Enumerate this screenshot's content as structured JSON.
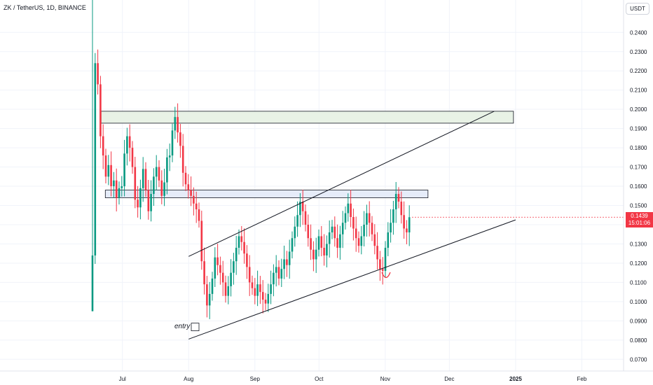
{
  "header": {
    "title": "ZK / TetherUS, 1D, BINANCE"
  },
  "currency_button": {
    "label": "USDT"
  },
  "last_price": {
    "value": "0.1439",
    "countdown": "15:01:06"
  },
  "annotations": {
    "entry_label": "entry"
  },
  "colors": {
    "up": "#089981",
    "down": "#f23645",
    "zone_green": "#e8f2e6",
    "zone_blue": "#e6ecf9"
  },
  "chart_data": {
    "type": "candlestick",
    "pair": "ZK / TetherUS",
    "interval": "1D",
    "exchange": "BINANCE",
    "x_tick_labels": [
      "Jul",
      "Aug",
      "Sep",
      "Oct",
      "Nov",
      "Dec",
      "2025",
      "Feb"
    ],
    "y_tick_labels": [
      "0.2400",
      "0.2300",
      "0.2200",
      "0.2100",
      "0.2000",
      "0.1900",
      "0.1800",
      "0.1700",
      "0.1600",
      "0.1500",
      "0.1400",
      "0.1300",
      "0.1200",
      "0.1100",
      "0.1000",
      "0.0900",
      "0.0800",
      "0.0700"
    ],
    "ylim": [
      0.0625,
      0.2555
    ],
    "resistance_zones": [
      {
        "top": 0.199,
        "bottom": 0.1928
      },
      {
        "top": 0.158,
        "bottom": 0.154
      }
    ],
    "channel_upper": {
      "start": [
        "2024-08-01",
        0.1235
      ],
      "end": [
        "2024-12-22",
        0.199
      ]
    },
    "channel_lower": {
      "start": [
        "2024-08-01",
        0.0805
      ],
      "end": [
        "2025-01-01",
        0.1425
      ]
    },
    "entry_marker_price": 0.087,
    "closes": [
      0.124,
      0.224,
      0.213,
      0.186,
      0.176,
      0.165,
      0.171,
      0.16,
      0.163,
      0.154,
      0.159,
      0.16,
      0.177,
      0.186,
      0.18,
      0.17,
      0.153,
      0.149,
      0.159,
      0.169,
      0.158,
      0.147,
      0.156,
      0.165,
      0.17,
      0.163,
      0.155,
      0.162,
      0.175,
      0.176,
      0.189,
      0.196,
      0.188,
      0.181,
      0.167,
      0.161,
      0.158,
      0.155,
      0.151,
      0.148,
      0.142,
      0.121,
      0.109,
      0.098,
      0.104,
      0.112,
      0.123,
      0.119,
      0.115,
      0.11,
      0.103,
      0.108,
      0.115,
      0.121,
      0.128,
      0.134,
      0.131,
      0.125,
      0.118,
      0.11,
      0.107,
      0.103,
      0.109,
      0.105,
      0.101,
      0.099,
      0.104,
      0.109,
      0.115,
      0.118,
      0.112,
      0.117,
      0.122,
      0.119,
      0.126,
      0.133,
      0.139,
      0.145,
      0.152,
      0.147,
      0.14,
      0.133,
      0.127,
      0.122,
      0.127,
      0.134,
      0.128,
      0.124,
      0.13,
      0.136,
      0.139,
      0.133,
      0.128,
      0.135,
      0.141,
      0.146,
      0.151,
      0.144,
      0.138,
      0.133,
      0.129,
      0.134,
      0.14,
      0.146,
      0.141,
      0.135,
      0.129,
      0.122,
      0.117,
      0.116,
      0.128,
      0.136,
      0.141,
      0.148,
      0.156,
      0.152,
      0.145,
      0.138,
      0.136,
      0.1439
    ]
  }
}
